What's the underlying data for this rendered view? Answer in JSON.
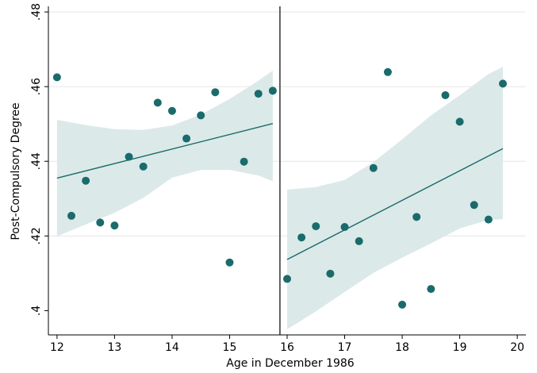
{
  "chart_data": {
    "type": "scatter",
    "title": "",
    "xlabel": "Age in December 1986",
    "ylabel": "Post-Compulsory Degree",
    "xlim": [
      11.85,
      20.15
    ],
    "ylim": [
      0.3935,
      0.4815
    ],
    "x_ticks": [
      12,
      13,
      14,
      15,
      16,
      17,
      18,
      19,
      20
    ],
    "x_tick_labels": [
      "12",
      "13",
      "14",
      "15",
      "16",
      "17",
      "18",
      "19",
      "20"
    ],
    "y_ticks": [
      0.4,
      0.42,
      0.44,
      0.46,
      0.48
    ],
    "y_tick_labels": [
      ".4",
      ".42",
      ".44",
      ".46",
      ".48"
    ],
    "grid": true,
    "cutoff_x": 15.875,
    "colors": {
      "point": "#1a6b6b",
      "fit_line": "#1a6b6b",
      "ci_band": "#dce9e9",
      "grid": "#e6e6e6",
      "axis": "#000000"
    },
    "series": [
      {
        "points": [
          {
            "x": 12.0,
            "y": 0.4625
          },
          {
            "x": 12.25,
            "y": 0.4254
          },
          {
            "x": 12.5,
            "y": 0.4348
          },
          {
            "x": 12.75,
            "y": 0.4236
          },
          {
            "x": 13.0,
            "y": 0.4228
          },
          {
            "x": 13.25,
            "y": 0.4412
          },
          {
            "x": 13.5,
            "y": 0.4386
          },
          {
            "x": 13.75,
            "y": 0.4557
          },
          {
            "x": 14.0,
            "y": 0.4535
          },
          {
            "x": 14.25,
            "y": 0.4461
          },
          {
            "x": 14.5,
            "y": 0.4523
          },
          {
            "x": 14.75,
            "y": 0.4585
          },
          {
            "x": 15.0,
            "y": 0.4129
          },
          {
            "x": 15.25,
            "y": 0.4399
          },
          {
            "x": 15.5,
            "y": 0.4581
          },
          {
            "x": 15.75,
            "y": 0.4589
          }
        ],
        "fit": {
          "x": [
            12.0,
            15.75
          ],
          "y": [
            0.4355,
            0.4501
          ]
        },
        "ci_band": {
          "x": [
            12.0,
            12.5,
            13.0,
            13.5,
            14.0,
            14.5,
            15.0,
            15.5,
            15.75
          ],
          "upper": [
            0.4511,
            0.4497,
            0.4486,
            0.4484,
            0.4496,
            0.4525,
            0.4567,
            0.4616,
            0.4643
          ],
          "lower": [
            0.4199,
            0.4231,
            0.4262,
            0.4302,
            0.4356,
            0.4377,
            0.4377,
            0.4362,
            0.4347
          ]
        }
      },
      {
        "points": [
          {
            "x": 16.0,
            "y": 0.4085
          },
          {
            "x": 16.25,
            "y": 0.4196
          },
          {
            "x": 16.5,
            "y": 0.4226
          },
          {
            "x": 16.75,
            "y": 0.4099
          },
          {
            "x": 17.0,
            "y": 0.4224
          },
          {
            "x": 17.25,
            "y": 0.4186
          },
          {
            "x": 17.5,
            "y": 0.4382
          },
          {
            "x": 17.75,
            "y": 0.4639
          },
          {
            "x": 18.0,
            "y": 0.4016
          },
          {
            "x": 18.25,
            "y": 0.4251
          },
          {
            "x": 18.5,
            "y": 0.4058
          },
          {
            "x": 18.75,
            "y": 0.4577
          },
          {
            "x": 19.0,
            "y": 0.4506
          },
          {
            "x": 19.25,
            "y": 0.4283
          },
          {
            "x": 19.5,
            "y": 0.4244
          },
          {
            "x": 19.75,
            "y": 0.4608
          }
        ],
        "fit": {
          "x": [
            16.0,
            19.75
          ],
          "y": [
            0.4137,
            0.4434
          ]
        },
        "ci_band": {
          "x": [
            16.0,
            16.5,
            17.0,
            17.5,
            18.0,
            18.5,
            19.0,
            19.5,
            19.75
          ],
          "upper": [
            0.4324,
            0.4331,
            0.435,
            0.4398,
            0.4459,
            0.4523,
            0.4577,
            0.4634,
            0.4653
          ],
          "lower": [
            0.395,
            0.3998,
            0.405,
            0.4101,
            0.4142,
            0.418,
            0.422,
            0.4243,
            0.4245
          ]
        }
      }
    ]
  }
}
